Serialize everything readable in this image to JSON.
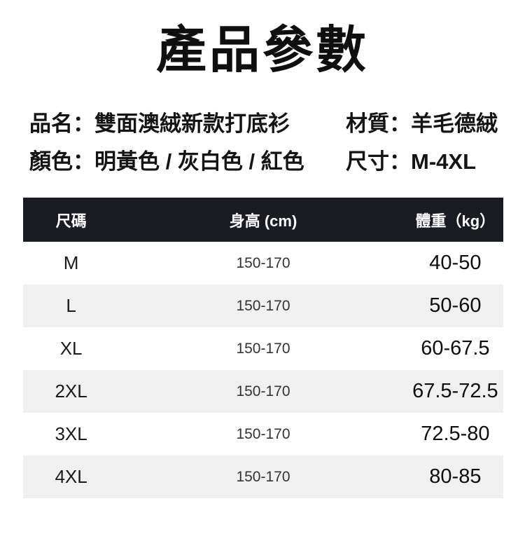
{
  "title": "產品參數",
  "info": {
    "left": [
      "品名：雙面澳絨新款打底衫",
      "顏色：明黃色 / 灰白色 / 紅色"
    ],
    "right": [
      "材質：羊毛德絨",
      "尺寸：M-4XL"
    ]
  },
  "size_table": {
    "headers": [
      "尺碼",
      "身高 (cm)",
      "體重（kg）"
    ],
    "rows": [
      {
        "size": "M",
        "height_cm": "150-170",
        "weight_kg": "40-50"
      },
      {
        "size": "L",
        "height_cm": "150-170",
        "weight_kg": "50-60"
      },
      {
        "size": "XL",
        "height_cm": "150-170",
        "weight_kg": "60-67.5"
      },
      {
        "size": "2XL",
        "height_cm": "150-170",
        "weight_kg": "67.5-72.5"
      },
      {
        "size": "3XL",
        "height_cm": "150-170",
        "weight_kg": "72.5-80"
      },
      {
        "size": "4XL",
        "height_cm": "150-170",
        "weight_kg": "80-85"
      }
    ]
  },
  "colors": {
    "header_bg": "#1b1b24",
    "header_text": "#ffffff",
    "row_alt_bg": "#f0f0f0"
  }
}
